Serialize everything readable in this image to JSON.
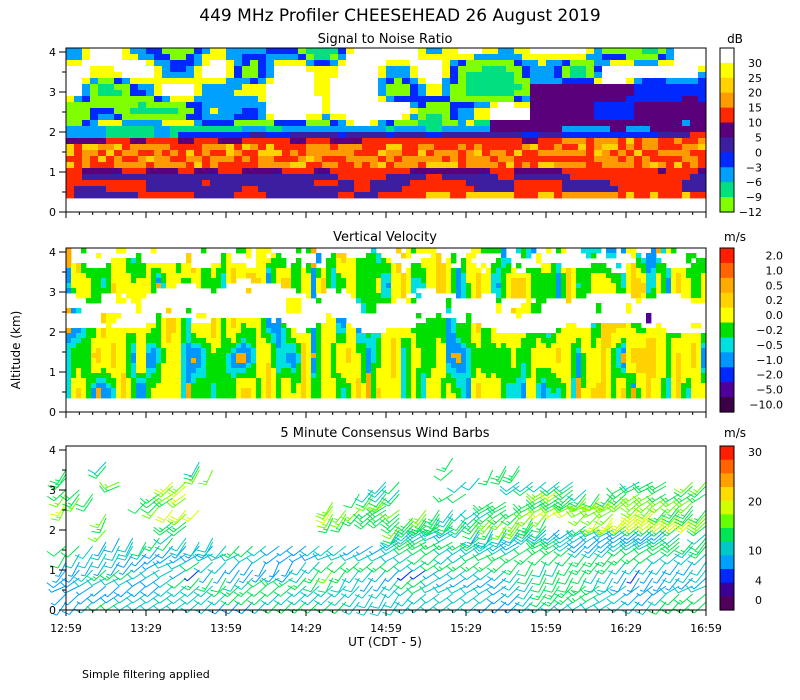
{
  "title": "449 MHz Profiler CHEESEHEAD 26 August 2019",
  "ylabel": "Altitude (km)",
  "xlabel": "UT  (CDT - 5)",
  "footnote": "Simple filtering applied",
  "x_ticks": [
    "12:59",
    "13:29",
    "13:59",
    "14:29",
    "14:59",
    "15:29",
    "15:59",
    "16:29",
    "16:59"
  ],
  "y_ticks": [
    "0",
    "1",
    "2",
    "3",
    "4"
  ],
  "chart_data": [
    {
      "type": "heatmap",
      "title": "Signal to Noise Ratio",
      "xlabel": "UT (CDT - 5)",
      "ylabel": "Altitude (km)",
      "x_range": [
        "12:59",
        "16:59"
      ],
      "ylim": [
        0,
        4
      ],
      "data_altitude_range_km": [
        0.3,
        4.0
      ],
      "colorbar": {
        "unit": "dB",
        "labels": [
          "30",
          "25",
          "20",
          "15",
          "10",
          "5",
          "0",
          "−3",
          "−6",
          "−9",
          "−12"
        ],
        "colors": [
          "#ffffff",
          "#ffff00",
          "#ffd200",
          "#ff9a00",
          "#ff2800",
          "#5a007a",
          "#3c1ea0",
          "#0028ff",
          "#00a0ff",
          "#00e080",
          "#80ff00"
        ]
      },
      "layers": [
        {
          "altitude_km": "0.3-0.9",
          "snr_db": "0 to 10"
        },
        {
          "altitude_km": "0.9-1.8",
          "snr_db": "10 to 15"
        },
        {
          "altitude_km": "1.8-2.2",
          "snr_db": "-3 to 5"
        },
        {
          "altitude_km": "2.2-4.0",
          "snr_db": "-12 to 30"
        }
      ]
    },
    {
      "type": "heatmap",
      "title": "Vertical Velocity",
      "xlabel": "UT (CDT - 5)",
      "ylabel": "Altitude (km)",
      "x_range": [
        "12:59",
        "16:59"
      ],
      "ylim": [
        0,
        4
      ],
      "data_altitude_range_km": [
        0.3,
        4.0
      ],
      "colorbar": {
        "unit": "m/s",
        "labels": [
          "2.0",
          "1.0",
          "0.5",
          "0.2",
          "0.0",
          "−0.2",
          "−0.5",
          "−1.0",
          "−2.0",
          "−5.0",
          "−10.0"
        ],
        "colors": [
          "#ff1e00",
          "#ff6400",
          "#ffaa00",
          "#ffd200",
          "#ffff00",
          "#00e000",
          "#00e0e0",
          "#0096ff",
          "#0028ff",
          "#50009a",
          "#3c0046"
        ]
      }
    },
    {
      "type": "scatter",
      "subtype": "wind-barbs",
      "title": "5 Minute Consensus Wind Barbs",
      "xlabel": "UT (CDT - 5)",
      "ylabel": "Altitude (km)",
      "x_range": [
        "12:59",
        "16:59"
      ],
      "ylim": [
        0,
        4
      ],
      "time_step_min": 5,
      "colorbar": {
        "unit": "m/s",
        "labels": [
          "30",
          "20",
          "10",
          "4",
          "0"
        ],
        "label_values": [
          30,
          20,
          10,
          4,
          0
        ],
        "colors": [
          "#ff1e00",
          "#ff6400",
          "#ffa000",
          "#ffdc00",
          "#d2ff00",
          "#64ff00",
          "#00e650",
          "#00c8c8",
          "#00a0ff",
          "#0028ff",
          "#3c0096",
          "#50005a"
        ]
      }
    }
  ]
}
